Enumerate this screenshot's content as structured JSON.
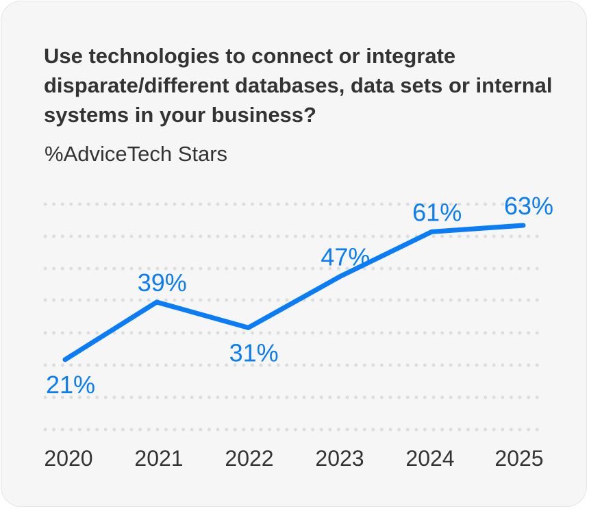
{
  "chart_data": {
    "type": "line",
    "title": "Use technologies to connect or integrate disparate/different databases, data sets or internal systems in your business?",
    "subtitle": "%AdviceTech Stars",
    "xlabel": "",
    "ylabel": "",
    "categories": [
      "2020",
      "2021",
      "2022",
      "2023",
      "2024",
      "2025"
    ],
    "series": [
      {
        "name": "%AdviceTech Stars",
        "values": [
          21,
          39,
          31,
          47,
          61,
          63
        ],
        "labels": [
          "21%",
          "39%",
          "31%",
          "47%",
          "61%",
          "63%"
        ],
        "label_position": [
          "below",
          "above",
          "below",
          "above",
          "above",
          "above"
        ],
        "color": "#0a7cf5"
      }
    ],
    "ylim": [
      0,
      70
    ],
    "grid": true,
    "grid_style": "dotted",
    "legend": "none"
  }
}
